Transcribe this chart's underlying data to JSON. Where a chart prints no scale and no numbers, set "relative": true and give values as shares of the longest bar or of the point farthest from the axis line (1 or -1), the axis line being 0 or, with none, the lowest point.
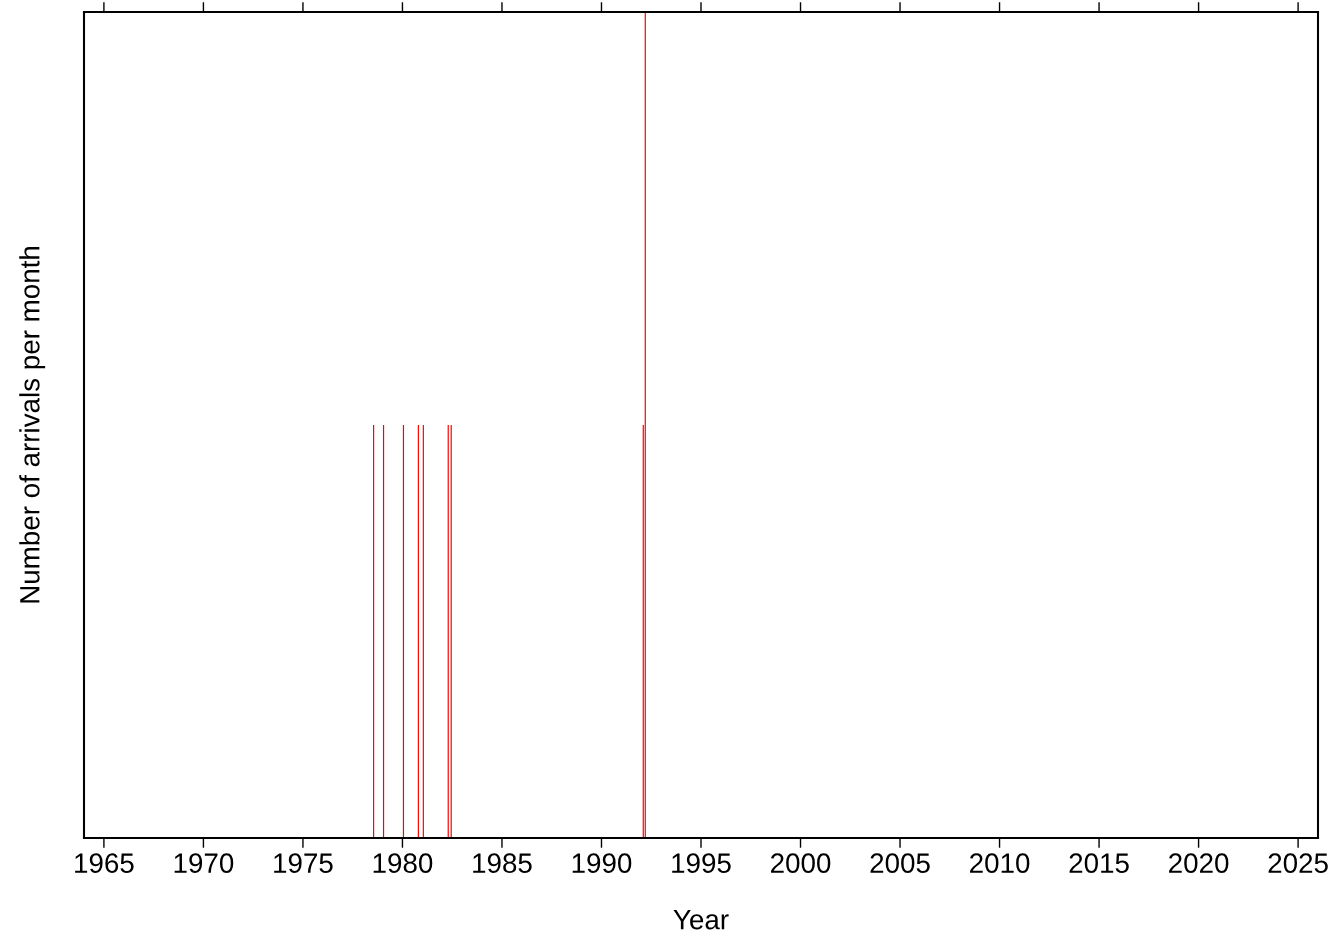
{
  "chart_data": {
    "type": "bar",
    "relative": true,
    "xlabel": "Year",
    "ylabel": "Number of arrivals per month",
    "x": [
      1978.55,
      1979.05,
      1980.05,
      1980.8,
      1981.05,
      1982.3,
      1982.45,
      1992.1,
      1992.2
    ],
    "values": [
      0.5,
      0.5,
      0.5,
      0.5,
      0.5,
      0.5,
      0.5,
      0.5,
      1
    ],
    "color": "#ff0000",
    "xlim": [
      1964,
      2026
    ],
    "xticks": [
      1965,
      1970,
      1975,
      1980,
      1985,
      1990,
      1995,
      2000,
      2005,
      2010,
      2015,
      2020,
      2025
    ],
    "tick_labels": "x",
    "grid": false,
    "legend": false
  }
}
